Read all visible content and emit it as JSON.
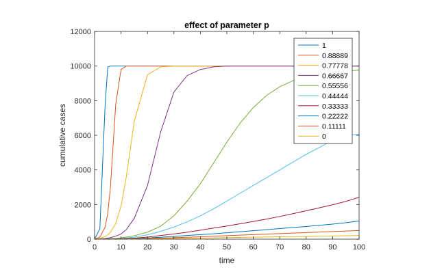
{
  "chart_data": {
    "type": "line",
    "title": "effect of parameter p",
    "xlabel": "time",
    "ylabel": "cumulative cases",
    "xlim": [
      0,
      100
    ],
    "ylim": [
      0,
      12000
    ],
    "xticks": [
      0,
      10,
      20,
      30,
      40,
      50,
      60,
      70,
      80,
      90,
      100
    ],
    "yticks": [
      0,
      2000,
      4000,
      6000,
      8000,
      10000,
      12000
    ],
    "grid": false,
    "legend_position": "top-right",
    "x": [
      0,
      2,
      4,
      5,
      6,
      8,
      10,
      12,
      15,
      20,
      25,
      30,
      35,
      40,
      45,
      50,
      55,
      60,
      65,
      70,
      75,
      80,
      85,
      90,
      95,
      100
    ],
    "series": [
      {
        "name": "1",
        "color": "#0072BD",
        "values": [
          0,
          600,
          7800,
          9950,
          10000,
          10000,
          10000,
          10000,
          10000,
          10000,
          10000,
          10000,
          10000,
          10000,
          10000,
          10000,
          10000,
          10000,
          10000,
          10000,
          10000,
          10000,
          10000,
          10000,
          10000,
          10000
        ]
      },
      {
        "name": "0.88889",
        "color": "#D95319",
        "values": [
          0,
          120,
          700,
          1500,
          3000,
          7800,
          9800,
          10000,
          10000,
          10000,
          10000,
          10000,
          10000,
          10000,
          10000,
          10000,
          10000,
          10000,
          10000,
          10000,
          10000,
          10000,
          10000,
          10000,
          10000,
          10000
        ]
      },
      {
        "name": "0.77778",
        "color": "#EDB120",
        "values": [
          0,
          40,
          150,
          250,
          400,
          900,
          1900,
          3600,
          6800,
          9500,
          9950,
          10000,
          10000,
          10000,
          10000,
          10000,
          10000,
          10000,
          10000,
          10000,
          10000,
          10000,
          10000,
          10000,
          10000,
          10000
        ]
      },
      {
        "name": "0.66667",
        "color": "#7E2F8E",
        "values": [
          0,
          10,
          40,
          60,
          90,
          170,
          300,
          550,
          1200,
          3100,
          6200,
          8500,
          9450,
          9800,
          9950,
          10000,
          10000,
          10000,
          10000,
          10000,
          10000,
          10000,
          10000,
          10000,
          10000,
          10000
        ]
      },
      {
        "name": "0.55556",
        "color": "#77AC30",
        "values": [
          0,
          5,
          15,
          20,
          30,
          50,
          80,
          120,
          200,
          400,
          750,
          1350,
          2200,
          3200,
          4400,
          5600,
          6700,
          7600,
          8300,
          8800,
          9150,
          9400,
          9550,
          9650,
          9720,
          9760
        ]
      },
      {
        "name": "0.44444",
        "color": "#4DBEEE",
        "values": [
          0,
          2,
          6,
          9,
          12,
          20,
          40,
          70,
          120,
          250,
          450,
          700,
          1000,
          1350,
          1750,
          2200,
          2650,
          3100,
          3550,
          4000,
          4450,
          4900,
          5300,
          5700,
          6000,
          6050
        ]
      },
      {
        "name": "0.33333",
        "color": "#A2142F",
        "values": [
          0,
          1,
          3,
          5,
          7,
          12,
          20,
          35,
          60,
          120,
          210,
          300,
          400,
          520,
          640,
          760,
          890,
          1020,
          1160,
          1310,
          1470,
          1640,
          1810,
          1990,
          2180,
          2420
        ]
      },
      {
        "name": "0.22222",
        "color": "#0072BD",
        "values": [
          0,
          1,
          2,
          3,
          4,
          7,
          12,
          20,
          35,
          70,
          110,
          160,
          210,
          260,
          310,
          370,
          430,
          490,
          550,
          610,
          670,
          730,
          800,
          870,
          950,
          1050
        ]
      },
      {
        "name": "0.11111",
        "color": "#D95319",
        "values": [
          0,
          1,
          1,
          2,
          3,
          5,
          8,
          12,
          20,
          40,
          60,
          85,
          110,
          140,
          170,
          200,
          230,
          260,
          290,
          320,
          350,
          380,
          410,
          440,
          470,
          500
        ]
      },
      {
        "name": "0",
        "color": "#EDB120",
        "values": [
          0,
          0,
          1,
          1,
          2,
          3,
          5,
          7,
          10,
          18,
          28,
          40,
          52,
          64,
          76,
          88,
          100,
          112,
          124,
          136,
          148,
          160,
          172,
          184,
          196,
          210
        ]
      }
    ]
  }
}
